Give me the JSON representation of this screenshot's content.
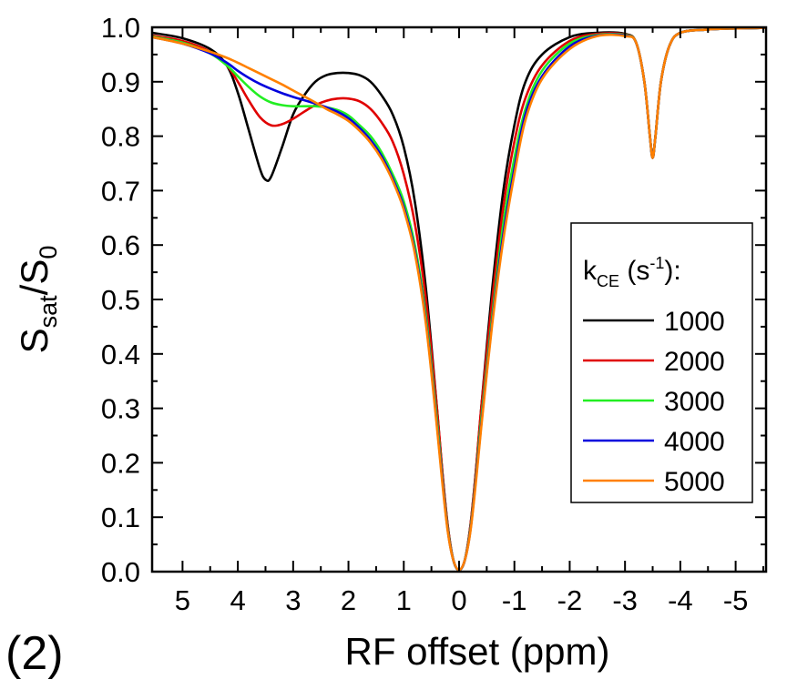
{
  "chart_data": {
    "type": "line",
    "panel_label": "(2)",
    "xlabel": "RF offset (ppm)",
    "ylabel": {
      "main": "S",
      "sub1": "sat",
      "slash": "/S",
      "sub2": "0"
    },
    "x_reversed": true,
    "xlim": [
      5.55,
      -5.55
    ],
    "ylim": [
      0.0,
      1.0
    ],
    "x_ticks": [
      5,
      4,
      3,
      2,
      1,
      0,
      -1,
      -2,
      -3,
      -4,
      -5
    ],
    "x_tick_labels": [
      "5",
      "4",
      "3",
      "2",
      "1",
      "0",
      "-1",
      "-2",
      "-3",
      "-4",
      "-5"
    ],
    "y_ticks": [
      0.0,
      0.1,
      0.2,
      0.3,
      0.4,
      0.5,
      0.6,
      0.7,
      0.8,
      0.9,
      1.0
    ],
    "y_tick_labels": [
      "0.0",
      "0.1",
      "0.2",
      "0.3",
      "0.4",
      "0.5",
      "0.6",
      "0.7",
      "0.8",
      "0.9",
      "1.0"
    ],
    "grid": false,
    "legend": {
      "title_k": "k",
      "title_sub": "CE",
      "title_unit_open": " (s",
      "title_sup": "-1",
      "title_unit_close": "):",
      "position": "right"
    },
    "series": [
      {
        "name": "1000",
        "color": "#000000",
        "x": [
          5.55,
          5.0,
          4.5,
          4.2,
          4.0,
          3.8,
          3.6,
          3.5,
          3.4,
          3.2,
          3.0,
          2.8,
          2.6,
          2.4,
          2.2,
          2.0,
          1.8,
          1.6,
          1.4,
          1.2,
          1.0,
          0.8,
          0.6,
          0.4,
          0.3,
          0.2,
          0.1,
          0.0,
          -0.1,
          -0.2,
          -0.3,
          -0.4,
          -0.6,
          -0.8,
          -1.0,
          -1.2,
          -1.5,
          -2.0,
          -2.5,
          -3.0,
          -3.2,
          -3.35,
          -3.45,
          -3.5,
          -3.55,
          -3.65,
          -3.8,
          -4.0,
          -4.5,
          -5.0,
          -5.55
        ],
        "y": [
          0.99,
          0.98,
          0.96,
          0.93,
          0.88,
          0.81,
          0.74,
          0.72,
          0.725,
          0.78,
          0.84,
          0.875,
          0.9,
          0.912,
          0.916,
          0.916,
          0.912,
          0.9,
          0.875,
          0.84,
          0.78,
          0.68,
          0.52,
          0.3,
          0.18,
          0.08,
          0.02,
          0.003,
          0.02,
          0.08,
          0.18,
          0.3,
          0.52,
          0.7,
          0.82,
          0.9,
          0.95,
          0.982,
          0.99,
          0.988,
          0.972,
          0.9,
          0.8,
          0.76,
          0.8,
          0.9,
          0.965,
          0.99,
          0.996,
          0.998,
          0.999
        ]
      },
      {
        "name": "2000",
        "color": "#e00000",
        "x": [
          5.55,
          5.0,
          4.5,
          4.2,
          4.0,
          3.8,
          3.6,
          3.4,
          3.2,
          3.0,
          2.8,
          2.6,
          2.4,
          2.2,
          2.0,
          1.8,
          1.6,
          1.4,
          1.2,
          1.0,
          0.8,
          0.6,
          0.4,
          0.3,
          0.2,
          0.1,
          0.0,
          -0.1,
          -0.2,
          -0.3,
          -0.4,
          -0.6,
          -0.8,
          -1.0,
          -1.2,
          -1.5,
          -2.0,
          -2.5,
          -3.0,
          -3.2,
          -3.35,
          -3.45,
          -3.5,
          -3.55,
          -3.65,
          -3.8,
          -4.0,
          -4.5,
          -5.0,
          -5.55
        ],
        "y": [
          0.985,
          0.975,
          0.955,
          0.93,
          0.9,
          0.865,
          0.835,
          0.82,
          0.822,
          0.832,
          0.845,
          0.857,
          0.865,
          0.869,
          0.869,
          0.864,
          0.85,
          0.825,
          0.79,
          0.73,
          0.64,
          0.5,
          0.3,
          0.18,
          0.08,
          0.02,
          0.003,
          0.02,
          0.08,
          0.18,
          0.3,
          0.5,
          0.67,
          0.79,
          0.87,
          0.93,
          0.975,
          0.988,
          0.987,
          0.972,
          0.9,
          0.8,
          0.76,
          0.8,
          0.9,
          0.965,
          0.99,
          0.996,
          0.998,
          0.999
        ]
      },
      {
        "name": "3000",
        "color": "#22ee22",
        "x": [
          5.55,
          5.0,
          4.5,
          4.2,
          4.0,
          3.8,
          3.6,
          3.4,
          3.2,
          3.0,
          2.8,
          2.6,
          2.4,
          2.2,
          2.0,
          1.8,
          1.6,
          1.4,
          1.2,
          1.0,
          0.8,
          0.6,
          0.4,
          0.3,
          0.2,
          0.1,
          0.0,
          -0.1,
          -0.2,
          -0.3,
          -0.4,
          -0.6,
          -0.8,
          -1.0,
          -1.2,
          -1.5,
          -2.0,
          -2.5,
          -3.0,
          -3.2,
          -3.35,
          -3.45,
          -3.5,
          -3.55,
          -3.65,
          -3.8,
          -4.0,
          -4.5,
          -5.0,
          -5.55
        ],
        "y": [
          0.983,
          0.972,
          0.952,
          0.93,
          0.91,
          0.89,
          0.873,
          0.862,
          0.857,
          0.855,
          0.855,
          0.855,
          0.853,
          0.848,
          0.838,
          0.82,
          0.8,
          0.77,
          0.73,
          0.68,
          0.6,
          0.47,
          0.28,
          0.17,
          0.075,
          0.02,
          0.003,
          0.02,
          0.075,
          0.17,
          0.28,
          0.47,
          0.64,
          0.76,
          0.85,
          0.92,
          0.97,
          0.986,
          0.986,
          0.972,
          0.9,
          0.8,
          0.76,
          0.8,
          0.9,
          0.965,
          0.99,
          0.996,
          0.998,
          0.999
        ]
      },
      {
        "name": "4000",
        "color": "#0000dd",
        "x": [
          5.55,
          5.0,
          4.5,
          4.2,
          4.0,
          3.8,
          3.6,
          3.4,
          3.2,
          3.0,
          2.8,
          2.6,
          2.4,
          2.2,
          2.0,
          1.8,
          1.6,
          1.4,
          1.2,
          1.0,
          0.8,
          0.6,
          0.4,
          0.3,
          0.2,
          0.1,
          0.0,
          -0.1,
          -0.2,
          -0.3,
          -0.4,
          -0.6,
          -0.8,
          -1.0,
          -1.2,
          -1.5,
          -2.0,
          -2.5,
          -3.0,
          -3.2,
          -3.35,
          -3.45,
          -3.5,
          -3.55,
          -3.65,
          -3.8,
          -4.0,
          -4.5,
          -5.0,
          -5.55
        ],
        "y": [
          0.982,
          0.97,
          0.952,
          0.935,
          0.92,
          0.907,
          0.896,
          0.887,
          0.879,
          0.872,
          0.866,
          0.86,
          0.853,
          0.845,
          0.833,
          0.815,
          0.793,
          0.763,
          0.722,
          0.67,
          0.59,
          0.46,
          0.27,
          0.165,
          0.072,
          0.02,
          0.003,
          0.02,
          0.072,
          0.165,
          0.27,
          0.46,
          0.62,
          0.74,
          0.84,
          0.91,
          0.965,
          0.985,
          0.985,
          0.972,
          0.9,
          0.8,
          0.76,
          0.8,
          0.9,
          0.965,
          0.99,
          0.996,
          0.998,
          0.999
        ]
      },
      {
        "name": "5000",
        "color": "#ff8000",
        "x": [
          5.55,
          5.0,
          4.5,
          4.2,
          4.0,
          3.8,
          3.6,
          3.4,
          3.2,
          3.0,
          2.8,
          2.6,
          2.4,
          2.2,
          2.0,
          1.8,
          1.6,
          1.4,
          1.2,
          1.0,
          0.8,
          0.6,
          0.4,
          0.3,
          0.2,
          0.1,
          0.0,
          -0.1,
          -0.2,
          -0.3,
          -0.4,
          -0.6,
          -0.8,
          -1.0,
          -1.2,
          -1.5,
          -2.0,
          -2.5,
          -3.0,
          -3.2,
          -3.35,
          -3.45,
          -3.5,
          -3.55,
          -3.65,
          -3.8,
          -4.0,
          -4.5,
          -5.0,
          -5.55
        ],
        "y": [
          0.982,
          0.97,
          0.955,
          0.944,
          0.935,
          0.925,
          0.915,
          0.905,
          0.895,
          0.884,
          0.873,
          0.862,
          0.85,
          0.84,
          0.828,
          0.81,
          0.788,
          0.758,
          0.718,
          0.665,
          0.585,
          0.455,
          0.265,
          0.16,
          0.07,
          0.02,
          0.003,
          0.02,
          0.07,
          0.16,
          0.265,
          0.455,
          0.61,
          0.73,
          0.83,
          0.905,
          0.96,
          0.984,
          0.984,
          0.972,
          0.9,
          0.8,
          0.76,
          0.8,
          0.9,
          0.965,
          0.99,
          0.996,
          0.998,
          0.999
        ]
      }
    ]
  }
}
